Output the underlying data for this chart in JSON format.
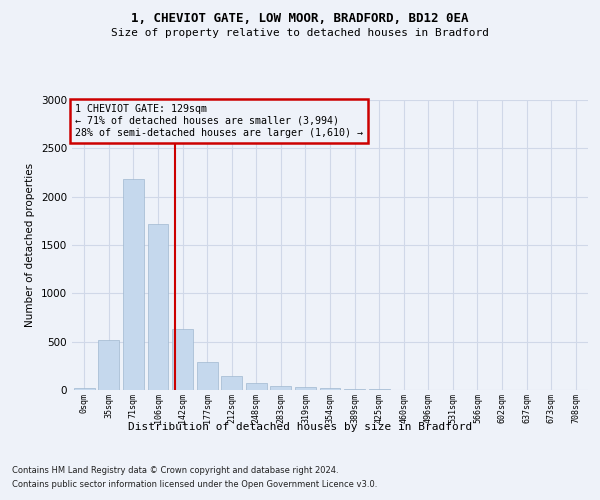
{
  "title_line1": "1, CHEVIOT GATE, LOW MOOR, BRADFORD, BD12 0EA",
  "title_line2": "Size of property relative to detached houses in Bradford",
  "xlabel": "Distribution of detached houses by size in Bradford",
  "ylabel": "Number of detached properties",
  "footer_line1": "Contains HM Land Registry data © Crown copyright and database right 2024.",
  "footer_line2": "Contains public sector information licensed under the Open Government Licence v3.0.",
  "annotation_line1": "1 CHEVIOT GATE: 129sqm",
  "annotation_line2": "← 71% of detached houses are smaller (3,994)",
  "annotation_line3": "28% of semi-detached houses are larger (1,610) →",
  "bar_labels": [
    "0sqm",
    "35sqm",
    "71sqm",
    "106sqm",
    "142sqm",
    "177sqm",
    "212sqm",
    "248sqm",
    "283sqm",
    "319sqm",
    "354sqm",
    "389sqm",
    "425sqm",
    "460sqm",
    "496sqm",
    "531sqm",
    "566sqm",
    "602sqm",
    "637sqm",
    "673sqm",
    "708sqm"
  ],
  "bar_values": [
    20,
    520,
    2180,
    1720,
    630,
    290,
    150,
    75,
    45,
    30,
    20,
    15,
    10,
    5,
    5,
    3,
    2,
    2,
    1,
    1,
    1
  ],
  "bar_color": "#c5d8ed",
  "bar_edge_color": "#a0b8d0",
  "vline_x_index": 3.7,
  "ylim": [
    0,
    3000
  ],
  "yticks": [
    0,
    500,
    1000,
    1500,
    2000,
    2500,
    3000
  ],
  "grid_color": "#d0d8e8",
  "annotation_box_edge_color": "#cc0000",
  "vline_color": "#cc0000",
  "background_color": "#eef2f9"
}
